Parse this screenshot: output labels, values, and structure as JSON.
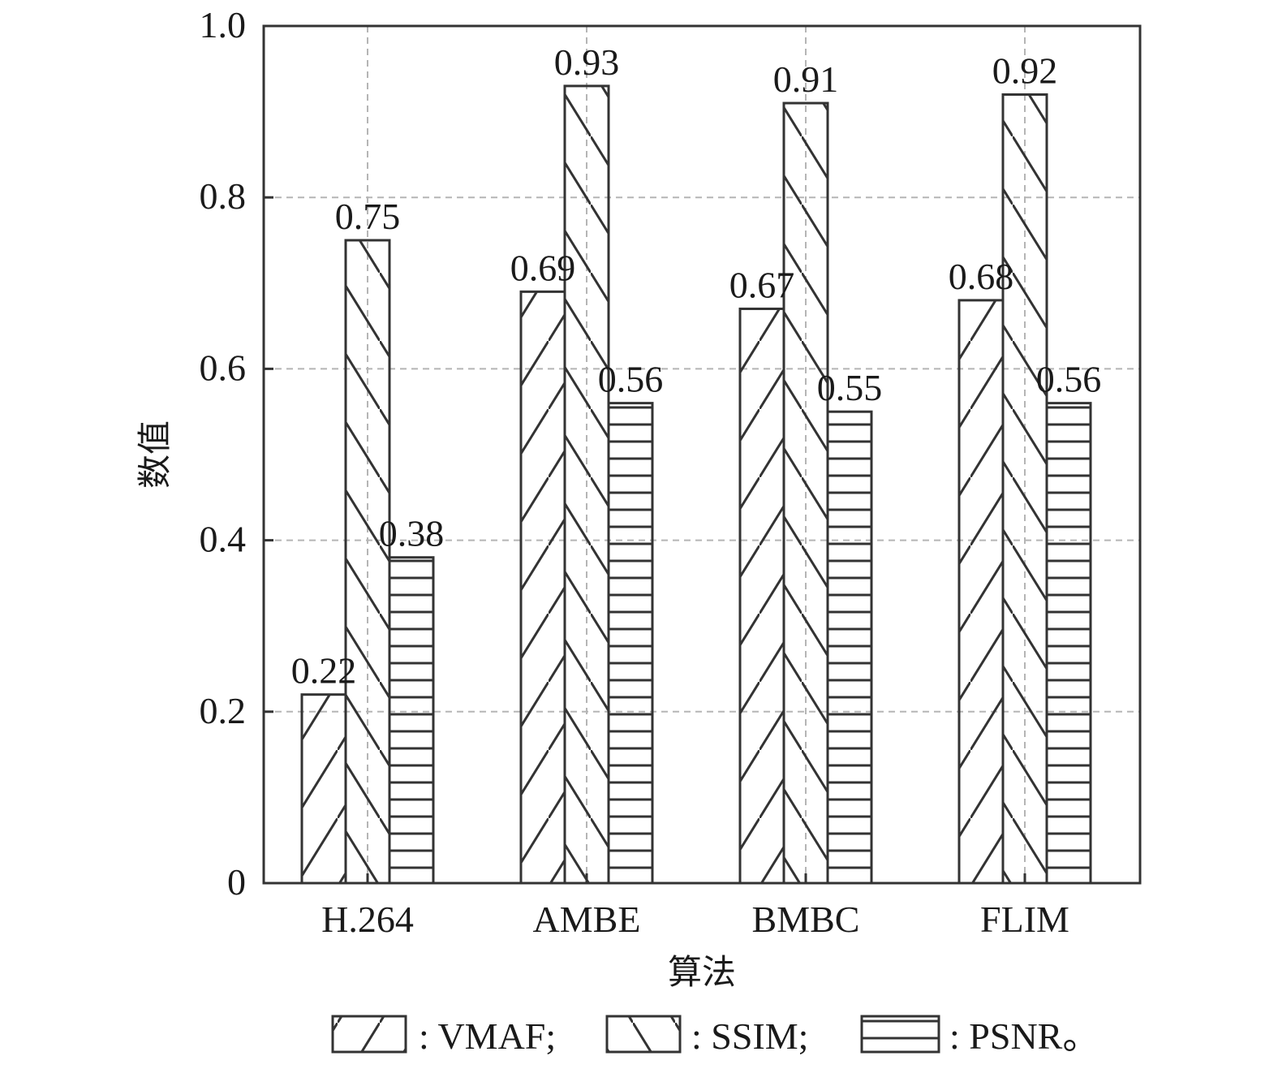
{
  "chart_data": {
    "type": "bar",
    "categories": [
      "H.264",
      "AMBE",
      "BMBC",
      "FLIM"
    ],
    "series": [
      {
        "name": "VMAF",
        "values": [
          0.22,
          0.69,
          0.67,
          0.68
        ],
        "hatch": "forward-diagonal"
      },
      {
        "name": "SSIM",
        "values": [
          0.75,
          0.93,
          0.91,
          0.92
        ],
        "hatch": "back-diagonal"
      },
      {
        "name": "PSNR",
        "values": [
          0.38,
          0.56,
          0.55,
          0.56
        ],
        "hatch": "horizontal"
      }
    ],
    "value_labels": [
      [
        "0.22",
        "0.69",
        "0.67",
        "0.68"
      ],
      [
        "0.75",
        "0.93",
        "0.91",
        "0.92"
      ],
      [
        "0.38",
        "0.56",
        "0.55",
        "0.56"
      ]
    ],
    "xlabel": "算法",
    "ylabel": "数值",
    "ylim": [
      0,
      1.0
    ],
    "yticks": [
      0,
      0.2,
      0.4,
      0.6,
      0.8,
      1.0
    ],
    "ytick_labels": [
      "0",
      "0.2",
      "0.4",
      "0.6",
      "0.8",
      "1.0"
    ],
    "grid": true,
    "legend": {
      "placement": "bottom",
      "items": [
        ": VMAF;",
        ": SSIM;",
        ": PSNR。"
      ]
    }
  }
}
